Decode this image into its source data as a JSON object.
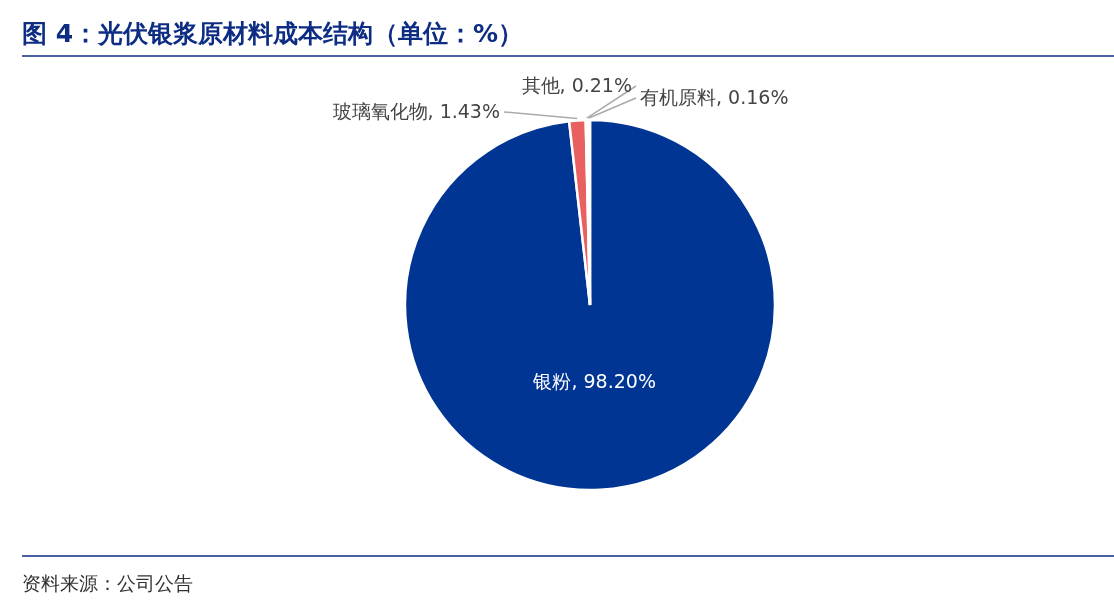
{
  "chart_data": {
    "type": "pie",
    "title": "图 4：光伏银浆原材料成本结构（单位：%）",
    "categories": [
      "银粉",
      "玻璃氧化物",
      "其他",
      "有机原料"
    ],
    "values": [
      98.2,
      1.43,
      0.21,
      0.16
    ],
    "colors": [
      "#003594",
      "#e8605f",
      "#f2f2f2",
      "#f2f2f2"
    ],
    "value_labels": [
      ", 98.20%",
      ", 1.43%",
      ", 0.21%",
      ", 0.16%"
    ],
    "annotations": [
      "资料来源：公司公告"
    ]
  }
}
